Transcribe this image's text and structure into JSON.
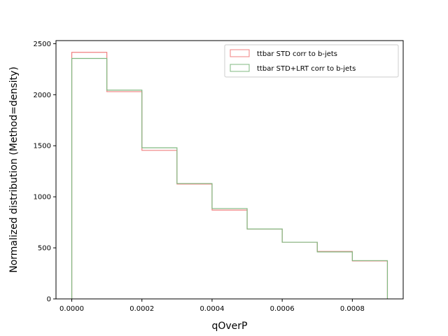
{
  "chart_data": {
    "type": "histogram-step",
    "title": "",
    "xlabel": "qOverP",
    "ylabel": "Normalized distribution (Method=density)",
    "xlim": [
      -4.5e-05,
      0.000945
    ],
    "ylim": [
      0,
      2530
    ],
    "xticks": [
      0.0,
      0.0002,
      0.0004,
      0.0006,
      0.0008
    ],
    "xtick_labels": [
      "0.0000",
      "0.0002",
      "0.0004",
      "0.0006",
      "0.0008"
    ],
    "yticks": [
      0,
      500,
      1000,
      1500,
      2000,
      2500
    ],
    "ytick_labels": [
      "0",
      "500",
      "1000",
      "1500",
      "2000",
      "2500"
    ],
    "bin_edges": [
      0.0,
      0.0001,
      0.0002,
      0.0003,
      0.0004,
      0.0005,
      0.0006,
      0.0007,
      0.0008,
      0.0009
    ],
    "grid": false,
    "legend_position": "top-right",
    "series": [
      {
        "name": "ttbar STD corr to b-jets",
        "color": "#f08080",
        "values": [
          2415,
          2030,
          1455,
          1125,
          870,
          685,
          555,
          465,
          372
        ]
      },
      {
        "name": "ttbar STD+LRT corr to b-jets",
        "color": "#80b880",
        "values": [
          2355,
          2045,
          1480,
          1130,
          885,
          685,
          555,
          460,
          375
        ]
      }
    ]
  }
}
